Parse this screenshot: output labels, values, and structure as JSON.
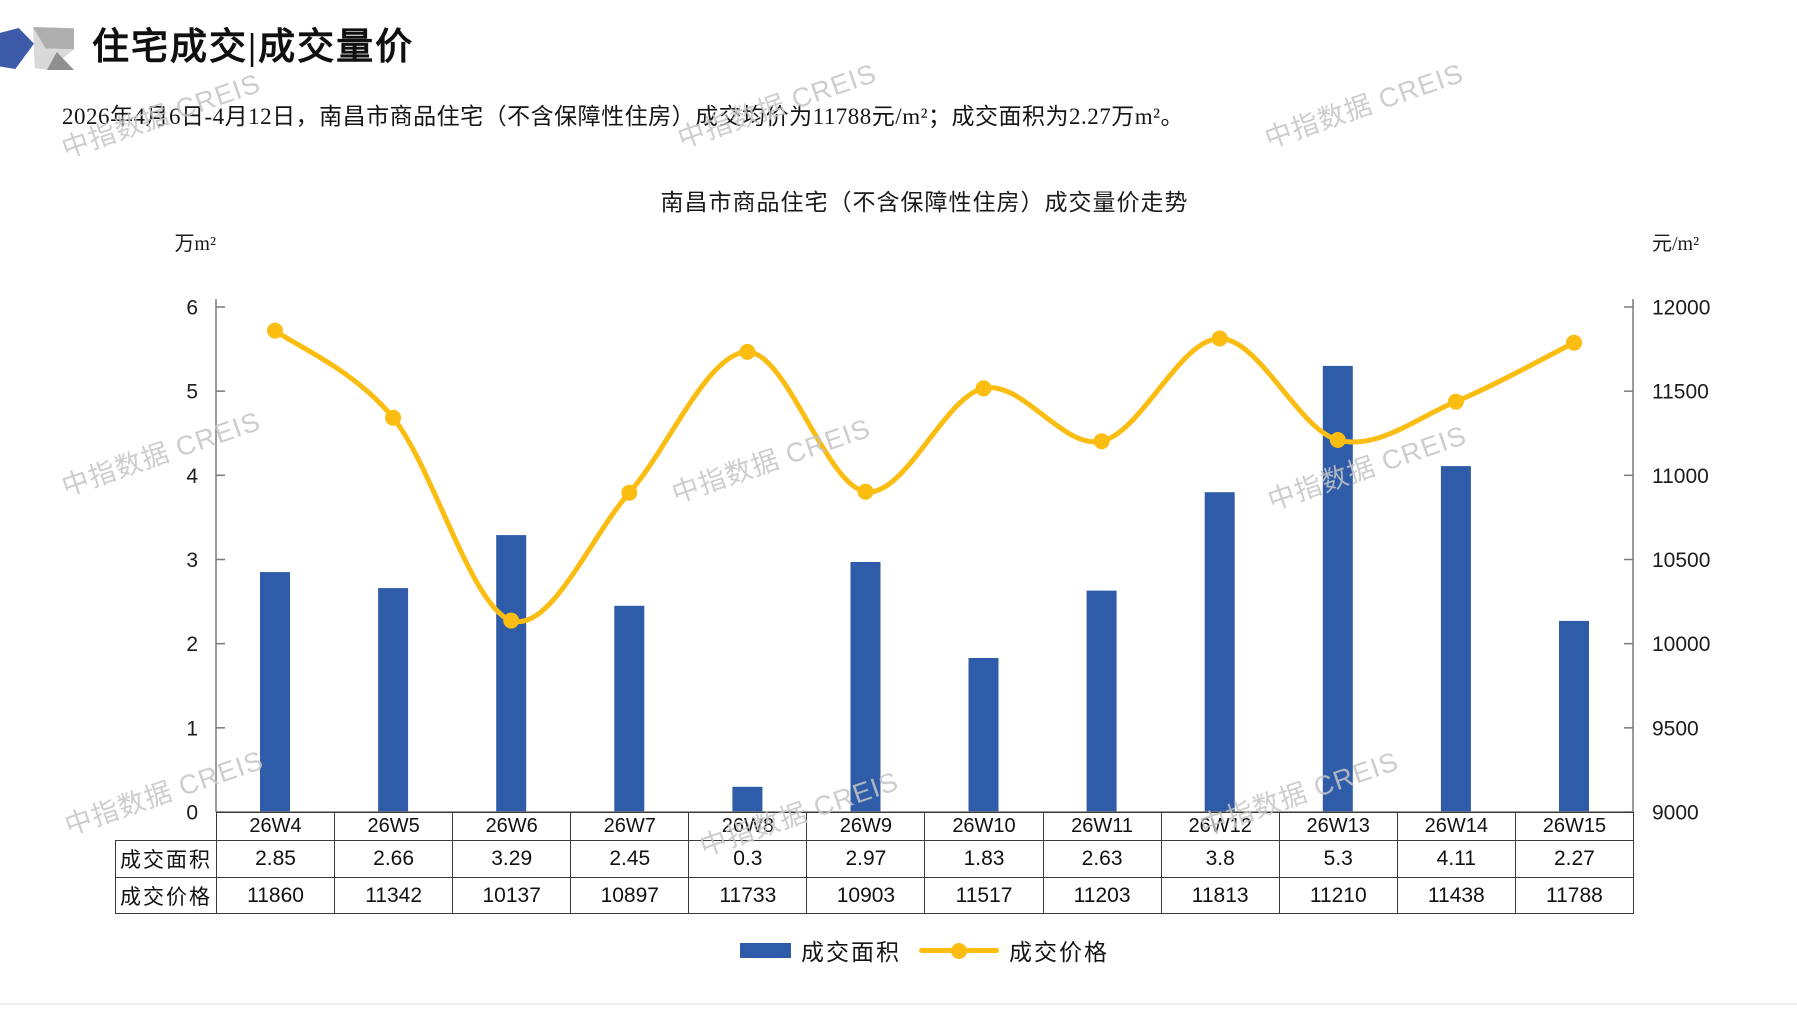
{
  "header": {
    "title": "住宅成交|成交量价"
  },
  "subtitle": "2026年4月6日-4月12日，南昌市商品住宅（不含保障性住房）成交均价为11788元/m²；成交面积为2.27万m²。",
  "watermark_text": "中指数据 CREIS",
  "chart_data": {
    "type": "bar",
    "combo": "bar+line",
    "title": "南昌市商品住宅（不含保障性住房）成交量价走势",
    "categories": [
      "26W4",
      "26W5",
      "26W6",
      "26W7",
      "26W8",
      "26W9",
      "26W10",
      "26W11",
      "26W12",
      "26W13",
      "26W14",
      "26W15"
    ],
    "series": [
      {
        "name": "成交面积",
        "type": "bar",
        "axis": "left",
        "color": "#2F5CA8",
        "values": [
          2.85,
          2.66,
          3.29,
          2.45,
          0.3,
          2.97,
          1.83,
          2.63,
          3.8,
          5.3,
          4.11,
          2.27
        ]
      },
      {
        "name": "成交价格",
        "type": "line",
        "axis": "right",
        "color": "#FBBD11",
        "values": [
          11860,
          11342,
          10137,
          10897,
          11733,
          10903,
          11517,
          11203,
          11813,
          11210,
          11438,
          11788
        ]
      }
    ],
    "left_axis": {
      "label": "万m²",
      "min": 0,
      "max": 6,
      "step": 1
    },
    "right_axis": {
      "label": "元/m²",
      "min": 9000,
      "max": 12000,
      "step": 500
    },
    "grid": false,
    "legend_position": "bottom",
    "table_row_headers": [
      "成交面积",
      "成交价格"
    ]
  }
}
